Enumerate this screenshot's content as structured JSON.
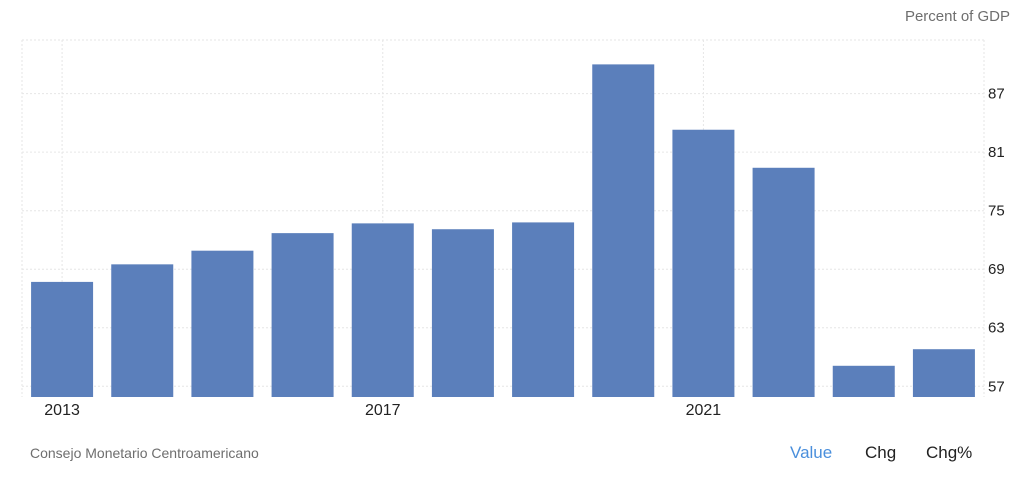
{
  "unit_label": "Percent of GDP",
  "source": "Consejo Monetario Centroamericano",
  "tabs": {
    "value": "Value",
    "chg": "Chg",
    "chgpct": "Chg%"
  },
  "colors": {
    "bar": "#5b7fbb",
    "active_tab": "#4a8fdc",
    "grid": "#e6e6e6"
  },
  "chart_data": {
    "type": "bar",
    "categories": [
      "2013",
      "2014",
      "2015",
      "2016",
      "2017",
      "2018",
      "2019",
      "2020",
      "2021",
      "2022",
      "2023",
      "2024"
    ],
    "values": [
      67.7,
      69.5,
      70.9,
      72.7,
      73.7,
      73.1,
      73.8,
      90.0,
      83.3,
      79.4,
      59.1,
      60.8
    ],
    "x_tick_labels": [
      "2013",
      "2017",
      "2021"
    ],
    "y_ticks": [
      57,
      63,
      69,
      75,
      81,
      87
    ],
    "ylim": [
      55.9,
      92.5
    ],
    "grid": true
  }
}
